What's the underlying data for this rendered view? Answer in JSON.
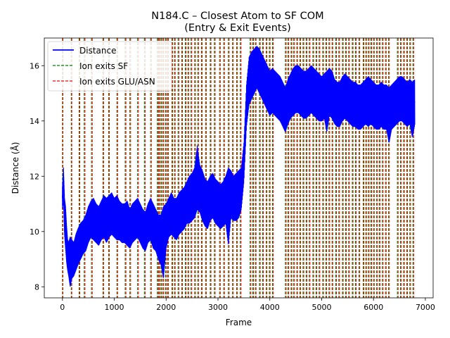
{
  "chart_data": {
    "type": "line",
    "title_line1": "N184.C – Closest Atom to SF COM",
    "title_line2": "(Entry & Exit Events)",
    "xlabel": "Frame",
    "ylabel": "Distance (Å)",
    "xlim": [
      -350,
      7150
    ],
    "ylim": [
      7.6,
      17.0
    ],
    "x_ticks": [
      0,
      1000,
      2000,
      3000,
      4000,
      5000,
      6000,
      7000
    ],
    "y_ticks": [
      8,
      10,
      12,
      14,
      16
    ],
    "legend": {
      "placement": "top-left",
      "entries": [
        {
          "label": "Distance",
          "color": "#0000ff",
          "style": "solid"
        },
        {
          "label": "Ion exits SF",
          "color": "#008000",
          "style": "dashed"
        },
        {
          "label": "Ion exits GLU/ASN",
          "color": "#ff0000",
          "style": "dashed"
        }
      ]
    },
    "series": [
      {
        "name": "Distance",
        "color": "#0000ff",
        "x": [
          0,
          20,
          40,
          60,
          80,
          100,
          120,
          150,
          180,
          220,
          260,
          300,
          350,
          400,
          450,
          500,
          550,
          600,
          650,
          700,
          750,
          800,
          850,
          900,
          950,
          1000,
          1050,
          1100,
          1150,
          1200,
          1250,
          1300,
          1350,
          1400,
          1450,
          1500,
          1550,
          1600,
          1650,
          1700,
          1750,
          1800,
          1850,
          1900,
          1950,
          2000,
          2050,
          2100,
          2150,
          2200,
          2250,
          2300,
          2350,
          2400,
          2450,
          2500,
          2550,
          2600,
          2650,
          2700,
          2750,
          2800,
          2850,
          2900,
          2950,
          3000,
          3050,
          3100,
          3150,
          3200,
          3250,
          3300,
          3350,
          3400,
          3450,
          3500,
          3550,
          3600,
          3650,
          3700,
          3750,
          3800,
          3850,
          3900,
          3950,
          4000,
          4050,
          4100,
          4150,
          4200,
          4250,
          4300,
          4350,
          4400,
          4450,
          4500,
          4550,
          4600,
          4650,
          4700,
          4750,
          4800,
          4850,
          4900,
          4950,
          5000,
          5050,
          5100,
          5150,
          5200,
          5250,
          5300,
          5350,
          5400,
          5450,
          5500,
          5550,
          5600,
          5650,
          5700,
          5750,
          5800,
          5850,
          5900,
          5950,
          6000,
          6050,
          6100,
          6150,
          6200,
          6250,
          6300,
          6350,
          6400,
          6450,
          6500,
          6550,
          6600,
          6650,
          6700,
          6750,
          6800
        ],
        "mean": [
          11.2,
          11.9,
          10.6,
          10.2,
          9.5,
          9.1,
          9.0,
          9.1,
          9.0,
          8.9,
          9.2,
          9.4,
          9.6,
          9.7,
          9.9,
          10.2,
          10.4,
          10.4,
          10.3,
          10.2,
          10.4,
          10.5,
          10.4,
          10.5,
          10.6,
          10.5,
          10.5,
          10.4,
          10.3,
          10.3,
          10.3,
          10.1,
          10.3,
          10.4,
          10.5,
          10.3,
          10.1,
          10.0,
          10.3,
          10.4,
          10.2,
          10.0,
          9.8,
          9.7,
          10.0,
          10.2,
          10.5,
          10.6,
          10.5,
          10.4,
          10.6,
          10.7,
          10.8,
          11.0,
          11.1,
          11.2,
          11.4,
          11.6,
          11.5,
          11.3,
          11.1,
          11.0,
          11.2,
          11.3,
          11.1,
          11.0,
          10.9,
          11.0,
          11.1,
          11.2,
          11.3,
          11.2,
          11.2,
          11.3,
          11.5,
          12.5,
          14.5,
          15.5,
          15.7,
          15.9,
          16.0,
          15.8,
          15.6,
          15.4,
          15.2,
          15.0,
          15.1,
          15.0,
          14.9,
          14.8,
          14.6,
          14.4,
          14.7,
          14.9,
          15.0,
          15.1,
          15.1,
          15.0,
          14.9,
          14.9,
          15.0,
          15.1,
          15.0,
          14.9,
          14.8,
          14.8,
          14.9,
          15.0,
          15.0,
          14.9,
          14.7,
          14.6,
          14.6,
          14.8,
          14.9,
          14.8,
          14.7,
          14.6,
          14.6,
          14.5,
          14.5,
          14.6,
          14.7,
          14.8,
          14.7,
          14.6,
          14.5,
          14.5,
          14.6,
          14.5,
          14.5,
          14.4,
          14.5,
          14.6,
          14.7,
          14.8,
          14.8,
          14.7,
          14.6,
          14.7,
          14.6,
          14.7
        ],
        "min": [
          10.8,
          11.2,
          9.9,
          9.4,
          8.9,
          8.6,
          8.4,
          8.0,
          8.3,
          8.4,
          8.6,
          8.8,
          9.0,
          9.2,
          9.3,
          9.6,
          9.8,
          9.7,
          9.6,
          9.5,
          9.7,
          9.8,
          9.6,
          9.8,
          9.9,
          9.8,
          9.7,
          9.7,
          9.6,
          9.6,
          9.5,
          9.4,
          9.6,
          9.7,
          9.8,
          9.6,
          9.4,
          9.3,
          9.6,
          9.7,
          9.4,
          9.3,
          9.0,
          8.8,
          8.3,
          9.4,
          9.8,
          9.9,
          9.8,
          9.7,
          9.9,
          10.0,
          10.1,
          10.3,
          10.3,
          10.4,
          10.5,
          10.8,
          10.7,
          10.4,
          10.2,
          10.1,
          10.4,
          10.5,
          10.3,
          10.2,
          10.1,
          10.2,
          10.3,
          9.5,
          10.5,
          10.4,
          10.4,
          10.5,
          10.8,
          11.8,
          13.8,
          14.6,
          14.8,
          15.0,
          15.2,
          15.0,
          14.8,
          14.6,
          14.4,
          14.2,
          14.3,
          14.2,
          14.1,
          14.0,
          13.8,
          13.6,
          13.9,
          14.1,
          14.2,
          14.3,
          14.3,
          14.2,
          14.1,
          14.1,
          14.2,
          14.3,
          14.2,
          14.1,
          14.0,
          14.0,
          14.1,
          13.6,
          14.2,
          14.1,
          13.9,
          13.8,
          13.8,
          14.0,
          14.1,
          14.0,
          13.9,
          13.8,
          13.8,
          13.7,
          13.7,
          13.8,
          13.9,
          13.8,
          13.9,
          13.8,
          13.7,
          13.7,
          13.8,
          13.7,
          13.7,
          13.2,
          13.7,
          13.8,
          13.9,
          14.0,
          14.0,
          13.9,
          13.8,
          13.9,
          13.4,
          13.9
        ],
        "max": [
          11.6,
          12.3,
          11.2,
          10.9,
          10.2,
          9.7,
          9.6,
          9.8,
          9.7,
          9.6,
          9.9,
          10.1,
          10.3,
          10.4,
          10.6,
          10.9,
          11.1,
          11.2,
          11.0,
          10.9,
          11.1,
          11.3,
          11.2,
          11.3,
          11.4,
          11.2,
          11.3,
          11.1,
          11.0,
          11.0,
          11.1,
          10.8,
          11.0,
          11.1,
          11.2,
          11.0,
          10.8,
          10.7,
          11.0,
          11.2,
          11.0,
          10.8,
          10.6,
          10.6,
          10.9,
          11.0,
          11.2,
          11.4,
          11.2,
          11.2,
          11.4,
          11.5,
          11.6,
          11.8,
          12.0,
          12.1,
          12.3,
          13.1,
          12.4,
          12.2,
          11.9,
          11.8,
          12.0,
          12.1,
          11.9,
          11.8,
          11.7,
          11.8,
          12.0,
          12.3,
          12.2,
          12.0,
          12.1,
          12.2,
          12.3,
          13.2,
          15.3,
          16.3,
          16.5,
          16.6,
          16.7,
          16.6,
          16.4,
          16.2,
          16.0,
          15.8,
          15.9,
          15.8,
          15.7,
          15.6,
          15.4,
          15.2,
          15.5,
          15.7,
          15.9,
          16.0,
          16.0,
          15.9,
          15.8,
          15.8,
          15.9,
          16.0,
          15.9,
          15.8,
          15.7,
          15.6,
          15.7,
          15.8,
          15.9,
          15.8,
          15.5,
          15.4,
          15.4,
          15.6,
          15.7,
          15.6,
          15.5,
          15.4,
          15.4,
          15.3,
          15.3,
          15.4,
          15.5,
          15.6,
          15.5,
          15.4,
          15.3,
          15.3,
          15.4,
          15.3,
          15.3,
          15.2,
          15.3,
          15.4,
          15.5,
          15.6,
          15.6,
          15.5,
          15.4,
          15.5,
          15.4,
          15.5
        ]
      }
    ],
    "exits_sf_frames": [
      0,
      170,
      320,
      420,
      560,
      780,
      890,
      1050,
      1210,
      1300,
      1450,
      1580,
      1700,
      1830,
      1860,
      1900,
      1940,
      1990,
      2030,
      2110,
      2160,
      2230,
      2300,
      2370,
      2420,
      2480,
      2550,
      2610,
      2680,
      2760,
      2850,
      2930,
      3030,
      3110,
      3200,
      3280,
      3360,
      3430,
      3620,
      3670,
      3720,
      3800,
      3860,
      3930,
      3990,
      4050,
      4300,
      4350,
      4410,
      4460,
      4520,
      4580,
      4640,
      4700,
      4760,
      4830,
      4890,
      4950,
      5020,
      5080,
      5140,
      5200,
      5270,
      5330,
      5400,
      5460,
      5520,
      5590,
      5650,
      5720,
      5800,
      5850,
      5900,
      5950,
      6000,
      6060,
      6110,
      6170,
      6230,
      6290,
      6460,
      6520,
      6580,
      6640,
      6700,
      6760
    ],
    "exits_glu_frames": [
      10,
      180,
      335,
      435,
      575,
      795,
      905,
      1065,
      1225,
      1315,
      1465,
      1595,
      1715,
      1845,
      1875,
      1915,
      1955,
      2005,
      2045,
      2125,
      2175,
      2245,
      2315,
      2385,
      2435,
      2495,
      2565,
      2625,
      2695,
      2775,
      2865,
      2945,
      3045,
      3125,
      3215,
      3295,
      3375,
      3445,
      3635,
      3685,
      3735,
      3815,
      3875,
      3945,
      4005,
      4065,
      4315,
      4365,
      4425,
      4475,
      4535,
      4595,
      4655,
      4715,
      4775,
      4845,
      4905,
      4965,
      5035,
      5095,
      5155,
      5215,
      5285,
      5345,
      5415,
      5475,
      5535,
      5605,
      5665,
      5735,
      5815,
      5865,
      5915,
      5965,
      6015,
      6075,
      6125,
      6185,
      6245,
      6305,
      6475,
      6535,
      6595,
      6655,
      6715,
      6775
    ]
  }
}
